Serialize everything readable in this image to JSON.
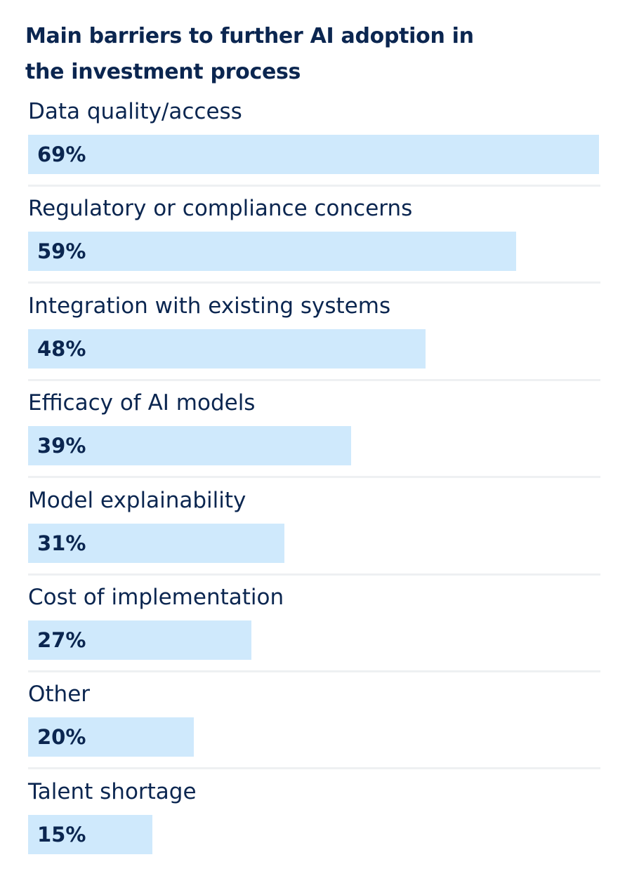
{
  "chart_data": {
    "type": "bar",
    "orientation": "horizontal",
    "title": "Main barriers to further AI adoption in the investment process",
    "categories": [
      "Data quality/access",
      "Regulatory or compliance concerns",
      "Integration with existing systems",
      "Efficacy of AI models",
      "Model explainability",
      "Cost of implementation",
      "Other",
      "Talent shortage"
    ],
    "values": [
      69,
      59,
      48,
      39,
      31,
      27,
      20,
      15
    ],
    "value_labels": [
      "69%",
      "59%",
      "48%",
      "39%",
      "31%",
      "27%",
      "20%",
      "15%"
    ],
    "unit": "%",
    "xlim": [
      0,
      69
    ],
    "grid": false,
    "legend": "none",
    "colors": {
      "bar": "#cfe9fc",
      "text": "#0b2650",
      "divider": "#eef0f2"
    }
  }
}
